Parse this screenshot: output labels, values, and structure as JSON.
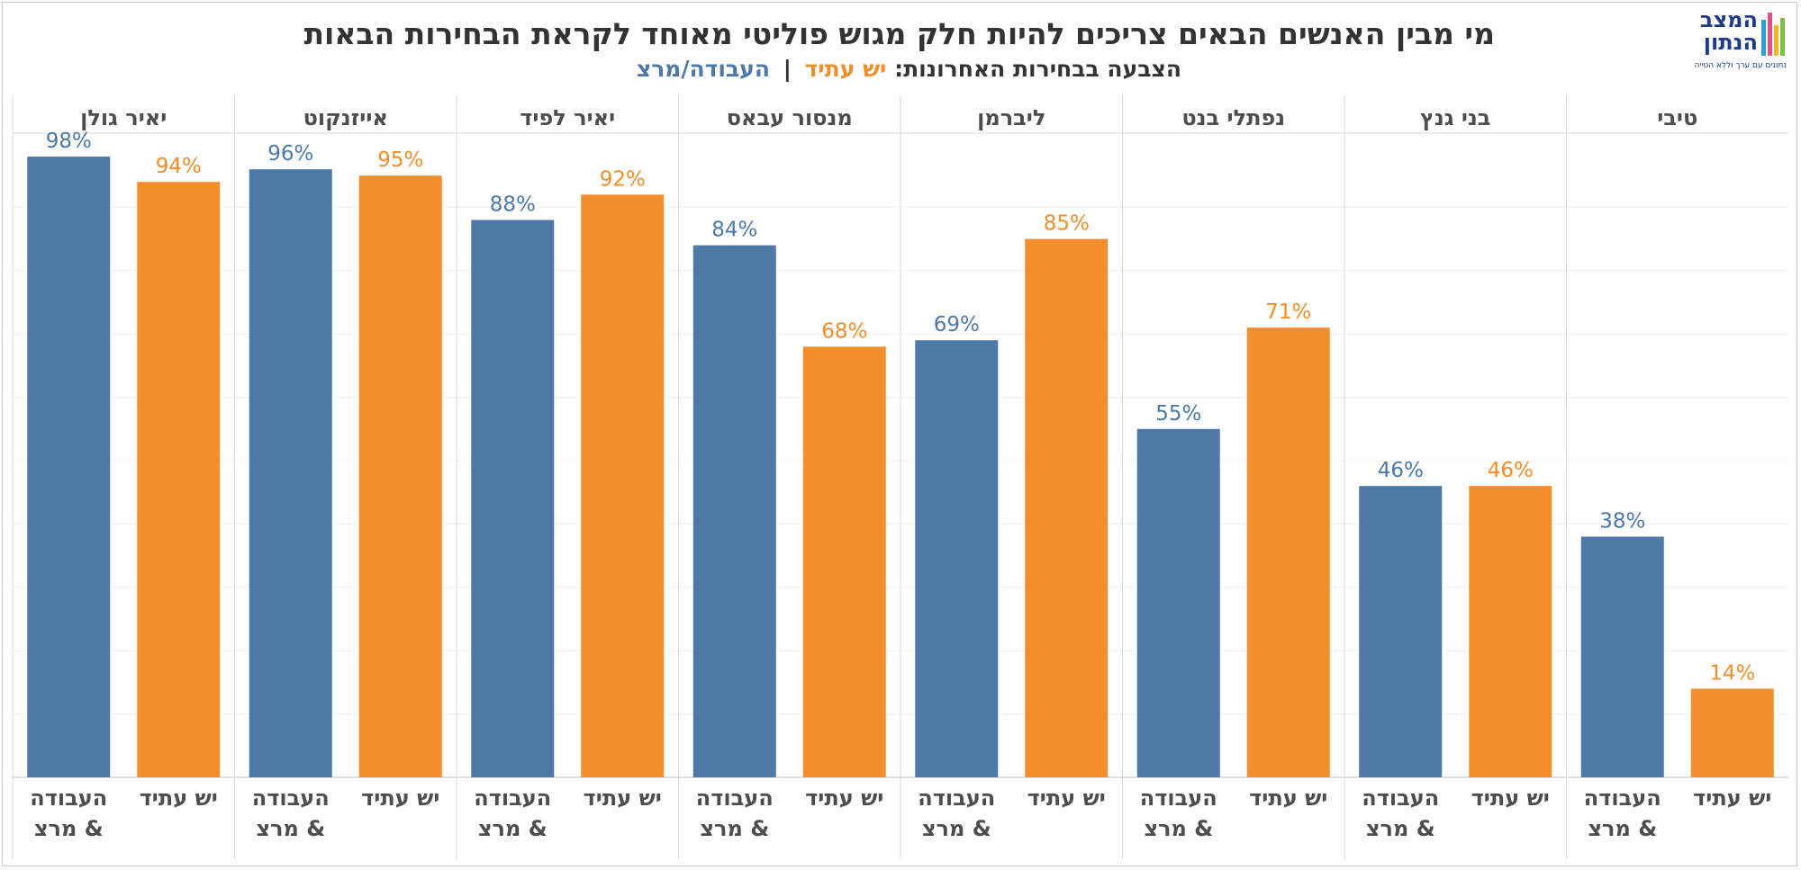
{
  "title": "מי מבין האנשים הבאים צריכים להיות חלק מגוש פוליטי מאוחד לקראת הבחירות הבאות",
  "subtitle": {
    "prefix": "הצבעה בבחירות האחרונות:",
    "series_a": "יש עתיד",
    "separator": "|",
    "series_b": "העבודה/מרצ"
  },
  "logo": {
    "line1": "המצב",
    "line2": "הנתון",
    "tagline": "נתונים עם ערך וללא הטייה"
  },
  "colors": {
    "blue": "#4e79a7",
    "orange": "#f28e2b",
    "title": "#333333"
  },
  "chart_data": {
    "type": "bar",
    "ylim": [
      0,
      100
    ],
    "grid": true,
    "categories": [
      "טיבי",
      "בני גנץ",
      "נפתלי בנט",
      "ליברמן",
      "מנסור עבאס",
      "יאיר לפיד",
      "אייזנקוט",
      "יאיר גולן"
    ],
    "series": [
      {
        "name": "העבודה & מרצ",
        "x_label_lines": [
          "העבודה",
          "& מרצ"
        ],
        "color": "#4e79a7",
        "values": [
          38,
          46,
          55,
          69,
          84,
          88,
          96,
          98
        ],
        "labels": [
          "38%",
          "46%",
          "55%",
          "69%",
          "84%",
          "88%",
          "96%",
          "98%"
        ]
      },
      {
        "name": "יש עתיד",
        "x_label_lines": [
          "יש עתיד"
        ],
        "color": "#f28e2b",
        "values": [
          14,
          46,
          71,
          85,
          68,
          92,
          95,
          94
        ],
        "labels": [
          "14%",
          "46%",
          "71%",
          "85%",
          "68%",
          "92%",
          "95%",
          "94%"
        ]
      }
    ]
  }
}
